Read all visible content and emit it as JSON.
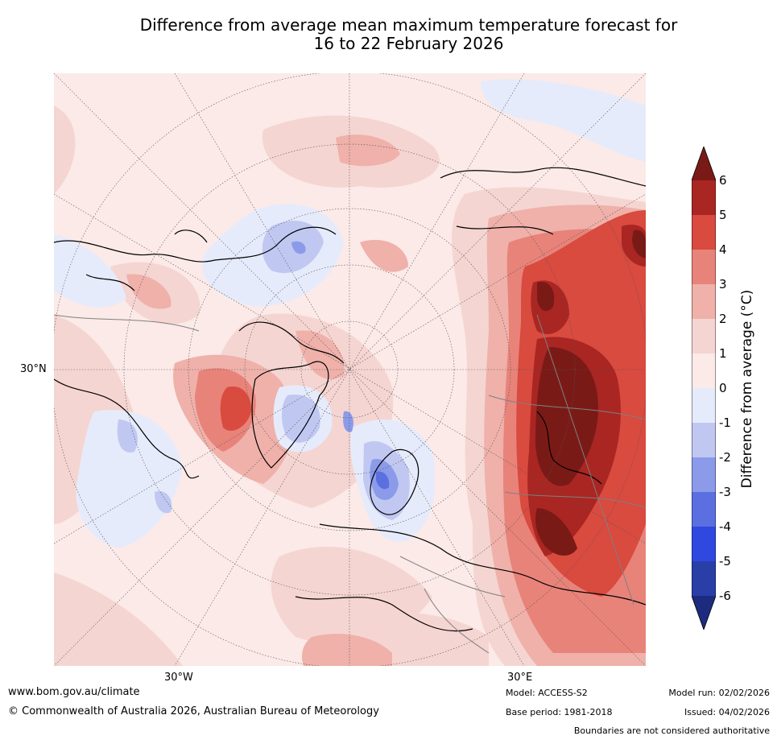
{
  "title_line1": "Difference from average mean maximum temperature forecast for",
  "title_line2": "16 to 22 February 2026",
  "map": {
    "lat_label": "30°N",
    "lon_labels": [
      "30°W",
      "30°E"
    ]
  },
  "colorbar": {
    "label": "Difference from average (°C)",
    "ticks": [
      "6",
      "5",
      "4",
      "3",
      "2",
      "1",
      "0",
      "-1",
      "-2",
      "-3",
      "-4",
      "-5",
      "-6"
    ],
    "bins": [
      {
        "range": "above 6",
        "color": "#7a1a17"
      },
      {
        "range": "5 to 6",
        "color": "#a92622"
      },
      {
        "range": "4 to 5",
        "color": "#d94a3f"
      },
      {
        "range": "3 to 4",
        "color": "#e8837a"
      },
      {
        "range": "2 to 3",
        "color": "#efb1aa"
      },
      {
        "range": "1 to 2",
        "color": "#f5d5d1"
      },
      {
        "range": "0 to 1",
        "color": "#fbeae7"
      },
      {
        "range": "-1 to 0",
        "color": "#e6ebfb"
      },
      {
        "range": "-2 to -1",
        "color": "#c0c8f2"
      },
      {
        "range": "-3 to -2",
        "color": "#8b9be9"
      },
      {
        "range": "-4 to -3",
        "color": "#5c6fe0"
      },
      {
        "range": "-5 to -4",
        "color": "#2f49e0"
      },
      {
        "range": "-6 to -5",
        "color": "#2a3ea8"
      },
      {
        "range": "below -6",
        "color": "#1d2b7e"
      }
    ]
  },
  "footer": {
    "website": "www.bom.gov.au/climate",
    "copyright": "© Commonwealth of Australia 2026, Australian Bureau of Meteorology",
    "model": "Model: ACCESS-S2",
    "base_period": "Base period: 1981-2018",
    "model_run": "Model run: 02/02/2026",
    "issued": "Issued: 04/02/2026",
    "disclaimer": "Boundaries are not considered authoritative"
  }
}
